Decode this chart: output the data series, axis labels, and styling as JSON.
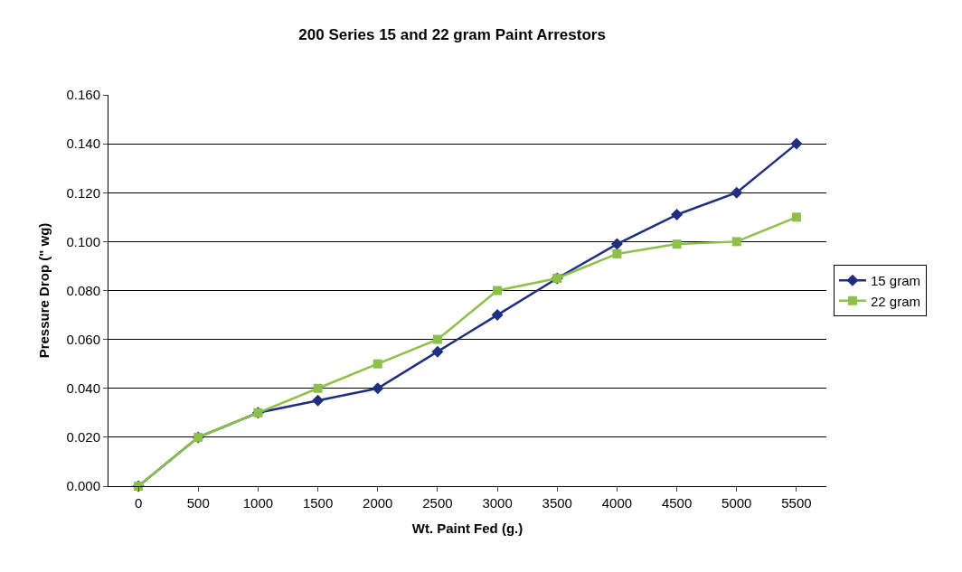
{
  "chart_data": {
    "type": "line",
    "title": "200 Series 15 and 22 gram Paint Arrestors",
    "xlabel": "Wt. Paint Fed (g.)",
    "ylabel": "Pressure Drop (\" wg)",
    "categories": [
      "0",
      "500",
      "1000",
      "1500",
      "2000",
      "2500",
      "3000",
      "3500",
      "4000",
      "4500",
      "5000",
      "5500"
    ],
    "series": [
      {
        "name": "15 gram",
        "color": "#1f2f7f",
        "marker": "diamond",
        "values": [
          0.0,
          0.02,
          0.03,
          0.035,
          0.04,
          0.055,
          0.07,
          0.085,
          0.099,
          0.111,
          0.12,
          0.14
        ]
      },
      {
        "name": "22 gram",
        "color": "#8dc04b",
        "marker": "square",
        "values": [
          0.0,
          0.02,
          0.03,
          0.04,
          0.05,
          0.06,
          0.08,
          0.085,
          0.095,
          0.099,
          0.1,
          0.11
        ]
      }
    ],
    "ylim": [
      0,
      0.16
    ],
    "yticks": [
      {
        "value": 0,
        "label": "0.000"
      },
      {
        "value": 0.02,
        "label": "0.020"
      },
      {
        "value": 0.04,
        "label": "0.040"
      },
      {
        "value": 0.06,
        "label": "0.060"
      },
      {
        "value": 0.08,
        "label": "0.080"
      },
      {
        "value": 0.1,
        "label": "0.100"
      },
      {
        "value": 0.12,
        "label": "0.120"
      },
      {
        "value": 0.14,
        "label": "0.140"
      },
      {
        "value": 0.16,
        "label": "0.160"
      }
    ],
    "grid": "y",
    "legend": "right",
    "line_style": "solid"
  }
}
